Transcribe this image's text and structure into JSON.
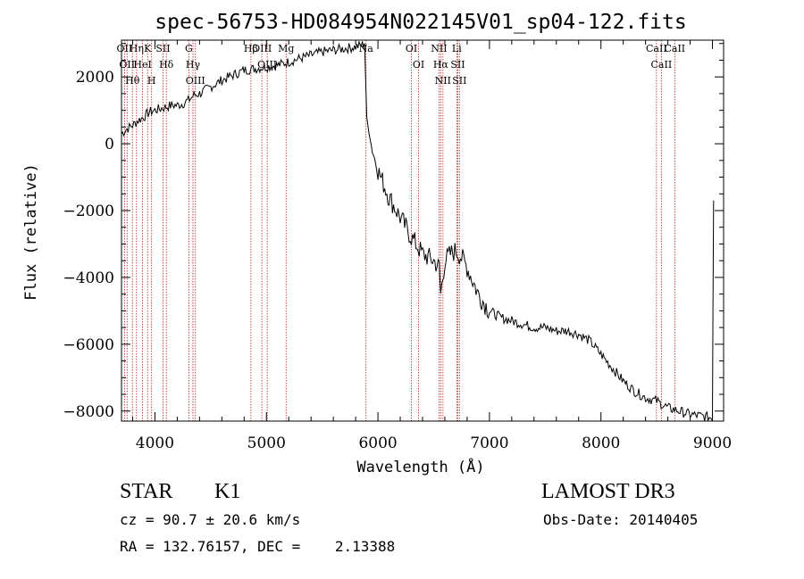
{
  "chart_data": {
    "type": "line",
    "title": "spec-56753-HD084954N022145V01_sp04-122.fits",
    "xlabel": "Wavelength (Å)",
    "ylabel": "Flux (relative)",
    "xlim": [
      3700,
      9100
    ],
    "ylim": [
      -8300,
      3100
    ],
    "xticks": [
      4000,
      5000,
      6000,
      7000,
      8000,
      9000
    ],
    "yticks": [
      2000,
      0,
      -2000,
      -4000,
      -6000,
      -8000
    ],
    "series": [
      {
        "x": [
          3700,
          3750,
          3800,
          3850,
          3900,
          3950,
          4000,
          4050,
          4100,
          4150,
          4200,
          4250,
          4300,
          4350,
          4400,
          4450,
          4500,
          4600,
          4700,
          4800,
          4900,
          5000,
          5100,
          5200,
          5300,
          5400,
          5500,
          5600,
          5700,
          5800,
          5850,
          5880,
          5900,
          5920,
          5950,
          6000,
          6050,
          6100,
          6150,
          6200,
          6300,
          6400,
          6500,
          6550,
          6563,
          6600,
          6650,
          6700,
          6750,
          6800,
          6900,
          7000,
          7100,
          7200,
          7300,
          7400,
          7500,
          7600,
          7700,
          7800,
          7900,
          8000,
          8100,
          8200,
          8300,
          8400,
          8500,
          8600,
          8700,
          8800,
          8900,
          9000,
          9010
        ],
        "y": [
          300,
          450,
          550,
          700,
          800,
          950,
          1000,
          1050,
          1100,
          1150,
          1150,
          1200,
          1300,
          1450,
          1500,
          1600,
          1700,
          1900,
          2050,
          2200,
          2250,
          2300,
          2350,
          2450,
          2550,
          2650,
          2750,
          2800,
          2850,
          2900,
          2950,
          3000,
          800,
          300,
          -200,
          -800,
          -1200,
          -1600,
          -1900,
          -2200,
          -2800,
          -3300,
          -3500,
          -3700,
          -4500,
          -3500,
          -3300,
          -3200,
          -3400,
          -3700,
          -4500,
          -5000,
          -5200,
          -5300,
          -5400,
          -5500,
          -5500,
          -5600,
          -5600,
          -5700,
          -5900,
          -6300,
          -6700,
          -7100,
          -7400,
          -7600,
          -7700,
          -7900,
          -8000,
          -8100,
          -8150,
          -8200,
          -1700
        ]
      }
    ],
    "line_markers": [
      {
        "wavelength": 3727,
        "labels": [
          "OII"
        ]
      },
      {
        "wavelength": 3750,
        "labels": [
          "OII"
        ]
      },
      {
        "wavelength": 3798,
        "labels": [
          "Hθ"
        ]
      },
      {
        "wavelength": 3835,
        "labels": [
          "Hη"
        ]
      },
      {
        "wavelength": 3889,
        "labels": [
          "HeI"
        ]
      },
      {
        "wavelength": 3934,
        "labels": [
          "K"
        ]
      },
      {
        "wavelength": 3970,
        "labels": [
          "H"
        ]
      },
      {
        "wavelength": 4072,
        "labels": [
          "SII"
        ]
      },
      {
        "wavelength": 4102,
        "labels": [
          "Hδ"
        ]
      },
      {
        "wavelength": 4304,
        "labels": [
          "G"
        ]
      },
      {
        "wavelength": 4341,
        "labels": [
          "Hγ"
        ]
      },
      {
        "wavelength": 4363,
        "labels": [
          "OIII"
        ]
      },
      {
        "wavelength": 4861,
        "labels": [
          "Hβ"
        ]
      },
      {
        "wavelength": 4959,
        "labels": [
          "OIII"
        ]
      },
      {
        "wavelength": 5007,
        "labels": [
          "OIII"
        ]
      },
      {
        "wavelength": 5176,
        "labels": [
          "Mg"
        ]
      },
      {
        "wavelength": 5893,
        "labels": [
          "Na"
        ]
      },
      {
        "wavelength": 6300,
        "labels": [
          "OI"
        ]
      },
      {
        "wavelength": 6364,
        "labels": [
          "OI"
        ]
      },
      {
        "wavelength": 6548,
        "labels": [
          "NII"
        ]
      },
      {
        "wavelength": 6563,
        "labels": [
          "Hα"
        ]
      },
      {
        "wavelength": 6583,
        "labels": [
          "NII"
        ]
      },
      {
        "wavelength": 6707,
        "labels": [
          "Li"
        ]
      },
      {
        "wavelength": 6716,
        "labels": [
          "SII"
        ]
      },
      {
        "wavelength": 6731,
        "labels": [
          "SII"
        ]
      },
      {
        "wavelength": 8498,
        "labels": [
          "CaII"
        ]
      },
      {
        "wavelength": 8542,
        "labels": [
          "CaII"
        ]
      },
      {
        "wavelength": 8662,
        "labels": [
          "CaII"
        ]
      }
    ],
    "colors": {
      "spectrum": "#000000",
      "markers": "#b22222"
    }
  },
  "info": {
    "class_label": "STAR",
    "subclass": "K1",
    "survey": "LAMOST DR3",
    "cz": "cz = 90.7 ± 20.6 km/s",
    "obs_date": "Obs-Date: 20140405",
    "radec": "RA = 132.76157, DEC =    2.13388"
  }
}
